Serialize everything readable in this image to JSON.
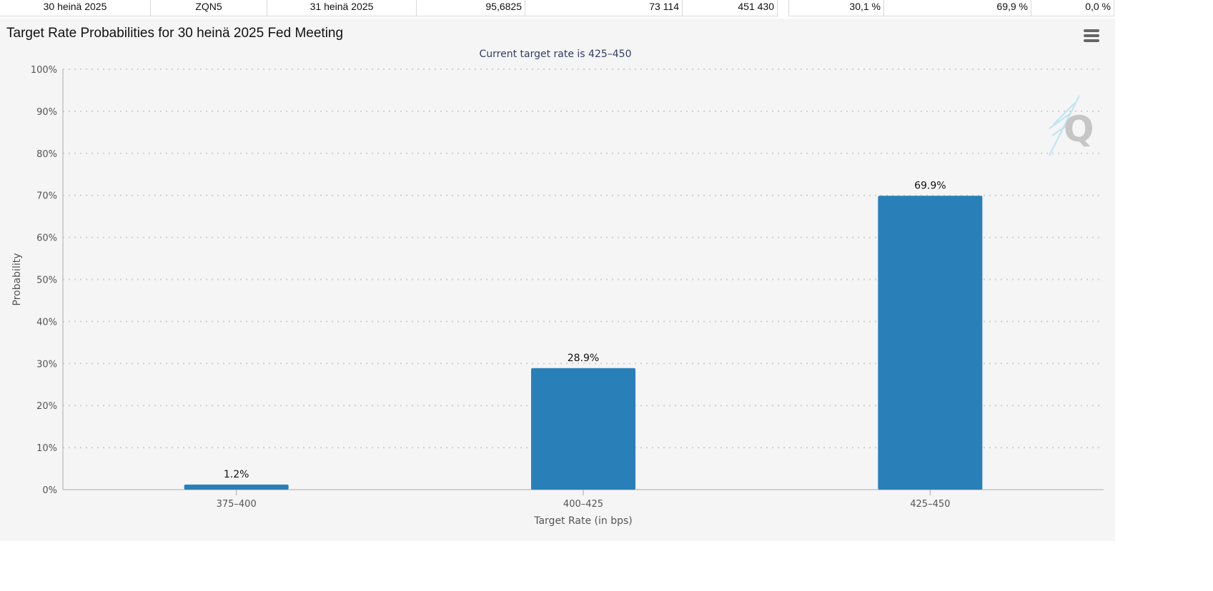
{
  "meeting_row": {
    "meeting_date": "30 heinä 2025",
    "contract": "ZQN5",
    "expires": "31 heinä 2025",
    "mid_price": "95,6825",
    "prior_volume": "73 114",
    "prior_oi": "451 430",
    "prob_ease": "30,1 %",
    "prob_no_change": "69,9 %",
    "prob_hike": "0,0 %"
  },
  "chart": {
    "title": "Target Rate Probabilities for 30 heinä 2025 Fed Meeting",
    "subtitle": "Current target rate is 425–450",
    "menu_icon": "hamburger-menu-icon",
    "watermark_icon": "q-logo-icon"
  },
  "colors": {
    "bar": "#2980b9",
    "grid": "#d0d0d0",
    "axis_text": "#555555",
    "subtitle": "#333c66"
  },
  "chart_data": {
    "type": "bar",
    "title": "Target Rate Probabilities for 30 heinä 2025 Fed Meeting",
    "subtitle": "Current target rate is 425–450",
    "categories": [
      "375–400",
      "400–425",
      "425–450"
    ],
    "values": [
      1.2,
      28.9,
      69.9
    ],
    "data_labels": [
      "1.2%",
      "28.9%",
      "69.9%"
    ],
    "xlabel": "Target Rate (in bps)",
    "ylabel": "Probability",
    "ylim": [
      0,
      100
    ],
    "y_ticks": [
      "0%",
      "10%",
      "20%",
      "30%",
      "40%",
      "50%",
      "60%",
      "70%",
      "80%",
      "90%",
      "100%"
    ],
    "grid": true,
    "legend": "none"
  }
}
